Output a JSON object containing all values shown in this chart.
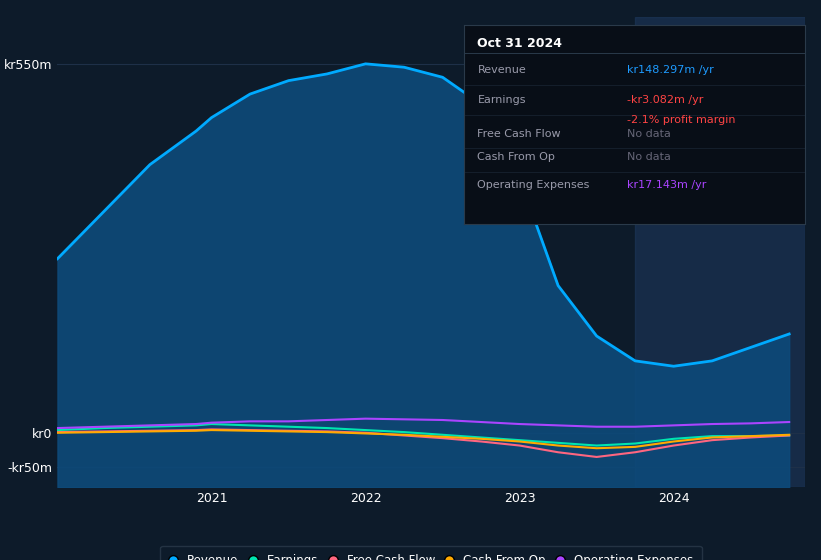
{
  "bg_color": "#0d1b2a",
  "plot_bg_color": "#0d1b2a",
  "grid_color": "#1e3048",
  "ylim": [
    -80,
    620
  ],
  "y_ticks": [
    550,
    0,
    -50
  ],
  "y_tick_labels": [
    "kr550m",
    "kr0",
    "-kr50m"
  ],
  "x_ticks": [
    2021,
    2022,
    2023,
    2024
  ],
  "x_lim": [
    2020.0,
    2024.85
  ],
  "tooltip": {
    "title": "Oct 31 2024",
    "rows": [
      {
        "label": "Revenue",
        "value": "kr148.297m /yr",
        "value_color": "#1e9bff",
        "extra": null
      },
      {
        "label": "Earnings",
        "value": "-kr3.082m /yr",
        "value_color": "#ff4444",
        "extra": "-2.1% profit margin"
      },
      {
        "label": "Free Cash Flow",
        "value": "No data",
        "value_color": "#666677",
        "extra": null
      },
      {
        "label": "Cash From Op",
        "value": "No data",
        "value_color": "#666677",
        "extra": null
      },
      {
        "label": "Operating Expenses",
        "value": "kr17.143m /yr",
        "value_color": "#aa44ff",
        "extra": null
      }
    ]
  },
  "series": {
    "Revenue": {
      "color": "#00aaff",
      "fill_color": "#0d4a7a",
      "x": [
        2020.0,
        2020.3,
        2020.6,
        2020.9,
        2021.0,
        2021.25,
        2021.5,
        2021.75,
        2022.0,
        2022.1,
        2022.25,
        2022.5,
        2022.75,
        2023.0,
        2023.25,
        2023.5,
        2023.75,
        2024.0,
        2024.25,
        2024.5,
        2024.75
      ],
      "y": [
        260,
        330,
        400,
        450,
        470,
        505,
        525,
        535,
        550,
        548,
        545,
        530,
        490,
        380,
        220,
        145,
        108,
        100,
        108,
        128,
        148
      ]
    },
    "Earnings": {
      "color": "#00e5b0",
      "x": [
        2020.0,
        2020.3,
        2020.6,
        2020.9,
        2021.0,
        2021.25,
        2021.5,
        2021.75,
        2022.0,
        2022.25,
        2022.5,
        2022.75,
        2023.0,
        2023.25,
        2023.5,
        2023.75,
        2024.0,
        2024.25,
        2024.5,
        2024.75
      ],
      "y": [
        5,
        8,
        10,
        12,
        14,
        12,
        10,
        8,
        5,
        2,
        -2,
        -6,
        -10,
        -14,
        -18,
        -15,
        -8,
        -4,
        -4,
        -3
      ]
    },
    "Free Cash Flow": {
      "color": "#ff6680",
      "x": [
        2020.0,
        2020.3,
        2020.6,
        2020.9,
        2021.0,
        2021.25,
        2021.5,
        2021.75,
        2022.0,
        2022.25,
        2022.5,
        2022.75,
        2023.0,
        2023.25,
        2023.5,
        2023.75,
        2024.0,
        2024.25,
        2024.5,
        2024.75
      ],
      "y": [
        2,
        3,
        4,
        5,
        6,
        5,
        4,
        3,
        1,
        -3,
        -7,
        -12,
        -18,
        -28,
        -35,
        -28,
        -18,
        -10,
        -6,
        -3
      ]
    },
    "Cash From Op": {
      "color": "#ffaa00",
      "x": [
        2020.0,
        2020.3,
        2020.6,
        2020.9,
        2021.0,
        2021.25,
        2021.5,
        2021.75,
        2022.0,
        2022.25,
        2022.5,
        2022.75,
        2023.0,
        2023.25,
        2023.5,
        2023.75,
        2024.0,
        2024.25,
        2024.5,
        2024.75
      ],
      "y": [
        1,
        2,
        3,
        4,
        5,
        4,
        3,
        2,
        0,
        -2,
        -5,
        -8,
        -12,
        -18,
        -22,
        -20,
        -12,
        -6,
        -4,
        -2
      ]
    },
    "Operating Expenses": {
      "color": "#aa44ff",
      "x": [
        2020.0,
        2020.3,
        2020.6,
        2020.9,
        2021.0,
        2021.25,
        2021.5,
        2021.75,
        2022.0,
        2022.25,
        2022.5,
        2022.75,
        2023.0,
        2023.25,
        2023.5,
        2023.75,
        2024.0,
        2024.25,
        2024.5,
        2024.75
      ],
      "y": [
        8,
        10,
        12,
        14,
        16,
        18,
        18,
        20,
        22,
        21,
        20,
        17,
        14,
        12,
        10,
        10,
        12,
        14,
        15,
        17
      ]
    }
  },
  "shaded_region": [
    2023.75,
    2024.85
  ],
  "legend": [
    {
      "label": "Revenue",
      "color": "#00aaff"
    },
    {
      "label": "Earnings",
      "color": "#00e5b0"
    },
    {
      "label": "Free Cash Flow",
      "color": "#ff6680"
    },
    {
      "label": "Cash From Op",
      "color": "#ffaa00"
    },
    {
      "label": "Operating Expenses",
      "color": "#aa44ff"
    }
  ],
  "figsize": [
    8.21,
    5.6
  ],
  "dpi": 100
}
